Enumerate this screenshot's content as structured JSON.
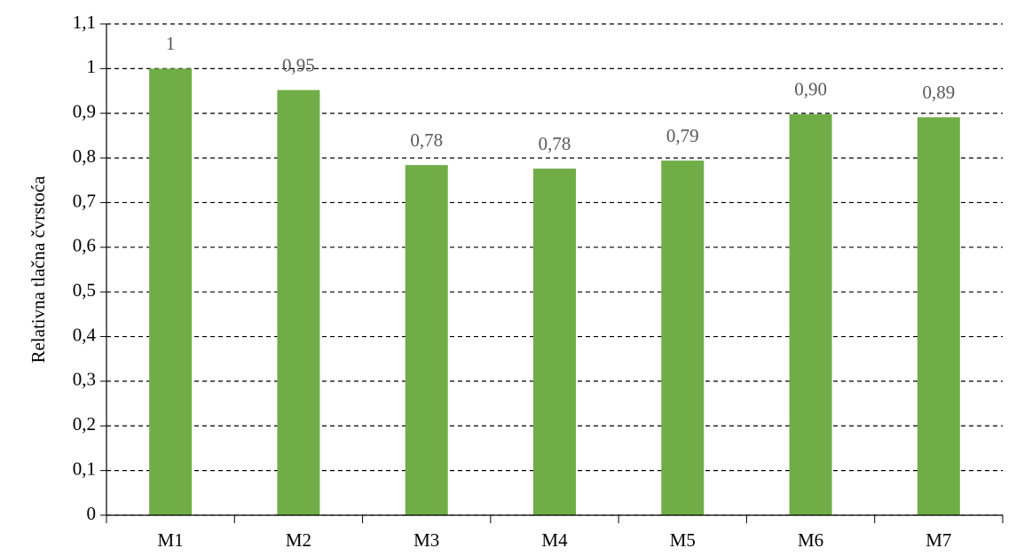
{
  "chart_data": {
    "type": "bar",
    "y_label": "Relativna  tlačna čvrstoća",
    "categories": [
      "M1",
      "M2",
      "M3",
      "M4",
      "M5",
      "M6",
      "M7"
    ],
    "values": [
      1,
      0.952,
      0.784,
      0.776,
      0.794,
      0.898,
      0.891
    ],
    "value_labels": [
      "1",
      "0,95",
      "0,78",
      "0,78",
      "0,79",
      "0,90",
      "0,89"
    ],
    "color": "#70ad47",
    "ylim": [
      0,
      1.1
    ],
    "yticks": [
      0,
      {
        "value": 0.1,
        "label": "0,1"
      },
      {
        "value": 0.2,
        "label": "0,2"
      },
      {
        "value": 0.3,
        "label": "0,3"
      },
      {
        "value": 0.4,
        "label": "0,4"
      },
      {
        "value": 0.5,
        "label": "0,5"
      },
      {
        "value": 0.6,
        "label": "0,6"
      },
      {
        "value": 0.7,
        "label": "0,7"
      },
      {
        "value": 0.8,
        "label": "0,8"
      },
      {
        "value": 0.9,
        "label": "0,9"
      },
      1,
      {
        "value": 1.1,
        "label": "1,1"
      }
    ],
    "grid": true
  }
}
